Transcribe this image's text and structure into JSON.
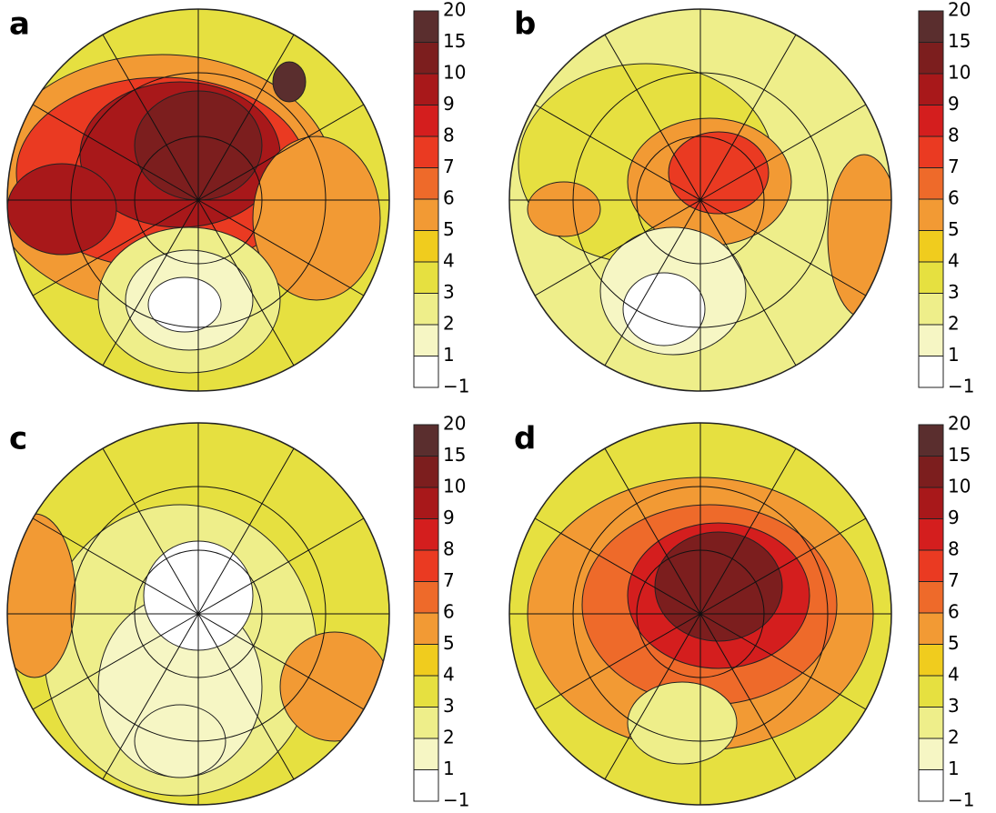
{
  "panels": [
    {
      "label": "a"
    },
    {
      "label": "b"
    },
    {
      "label": "c"
    },
    {
      "label": "d"
    }
  ],
  "colorbar": {
    "ticks": [
      "20",
      "15",
      "10",
      "9",
      "8",
      "7",
      "6",
      "5",
      "4",
      "3",
      "2",
      "1",
      "−1"
    ],
    "colors": [
      "#5a2e2e",
      "#7c1e1e",
      "#a8181a",
      "#d41e1e",
      "#ea3a22",
      "#ee6a2a",
      "#f29a34",
      "#f0cc1e",
      "#e6e040",
      "#eeee8a",
      "#f6f6c4",
      "#ffffff"
    ]
  }
}
